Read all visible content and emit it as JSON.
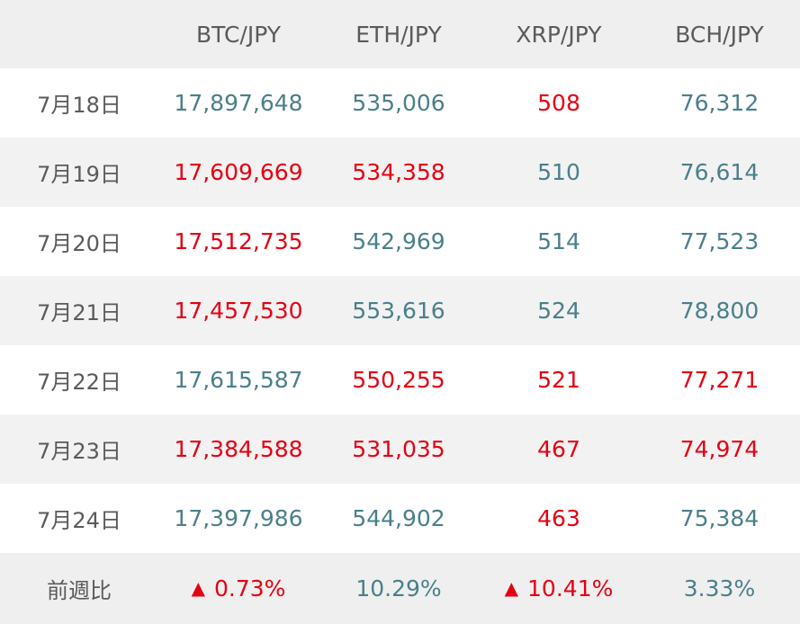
{
  "columns": [
    "",
    "BTC/JPY",
    "ETH/JPY",
    "XRP/JPY",
    "BCH/JPY"
  ],
  "rows": [
    {
      "date": "7月18日",
      "cells": [
        {
          "value": "17,897,648",
          "trend": "down"
        },
        {
          "value": "535,006",
          "trend": "down"
        },
        {
          "value": "508",
          "trend": "up"
        },
        {
          "value": "76,312",
          "trend": "down"
        }
      ]
    },
    {
      "date": "7月19日",
      "cells": [
        {
          "value": "17,609,669",
          "trend": "up"
        },
        {
          "value": "534,358",
          "trend": "up"
        },
        {
          "value": "510",
          "trend": "down"
        },
        {
          "value": "76,614",
          "trend": "down"
        }
      ]
    },
    {
      "date": "7月20日",
      "cells": [
        {
          "value": "17,512,735",
          "trend": "up"
        },
        {
          "value": "542,969",
          "trend": "down"
        },
        {
          "value": "514",
          "trend": "down"
        },
        {
          "value": "77,523",
          "trend": "down"
        }
      ]
    },
    {
      "date": "7月21日",
      "cells": [
        {
          "value": "17,457,530",
          "trend": "up"
        },
        {
          "value": "553,616",
          "trend": "down"
        },
        {
          "value": "524",
          "trend": "down"
        },
        {
          "value": "78,800",
          "trend": "down"
        }
      ]
    },
    {
      "date": "7月22日",
      "cells": [
        {
          "value": "17,615,587",
          "trend": "down"
        },
        {
          "value": "550,255",
          "trend": "up"
        },
        {
          "value": "521",
          "trend": "up"
        },
        {
          "value": "77,271",
          "trend": "up"
        }
      ]
    },
    {
      "date": "7月23日",
      "cells": [
        {
          "value": "17,384,588",
          "trend": "up"
        },
        {
          "value": "531,035",
          "trend": "up"
        },
        {
          "value": "467",
          "trend": "up"
        },
        {
          "value": "74,974",
          "trend": "up"
        }
      ]
    },
    {
      "date": "7月24日",
      "cells": [
        {
          "value": "17,397,986",
          "trend": "down"
        },
        {
          "value": "544,902",
          "trend": "down"
        },
        {
          "value": "463",
          "trend": "up"
        },
        {
          "value": "75,384",
          "trend": "down"
        }
      ]
    }
  ],
  "footer": {
    "label": "前週比",
    "cells": [
      {
        "value": "0.73%",
        "trend": "up",
        "marker": "▲"
      },
      {
        "value": "10.29%",
        "trend": "down",
        "marker": ""
      },
      {
        "value": "10.41%",
        "trend": "up",
        "marker": "▲"
      },
      {
        "value": "3.33%",
        "trend": "down",
        "marker": ""
      }
    ]
  },
  "colors": {
    "up": "#e60012",
    "down": "#4a7f8a",
    "label": "#5a5a5a",
    "header_bg": "#efefef",
    "alt_row_bg": "#f2f2f2"
  }
}
